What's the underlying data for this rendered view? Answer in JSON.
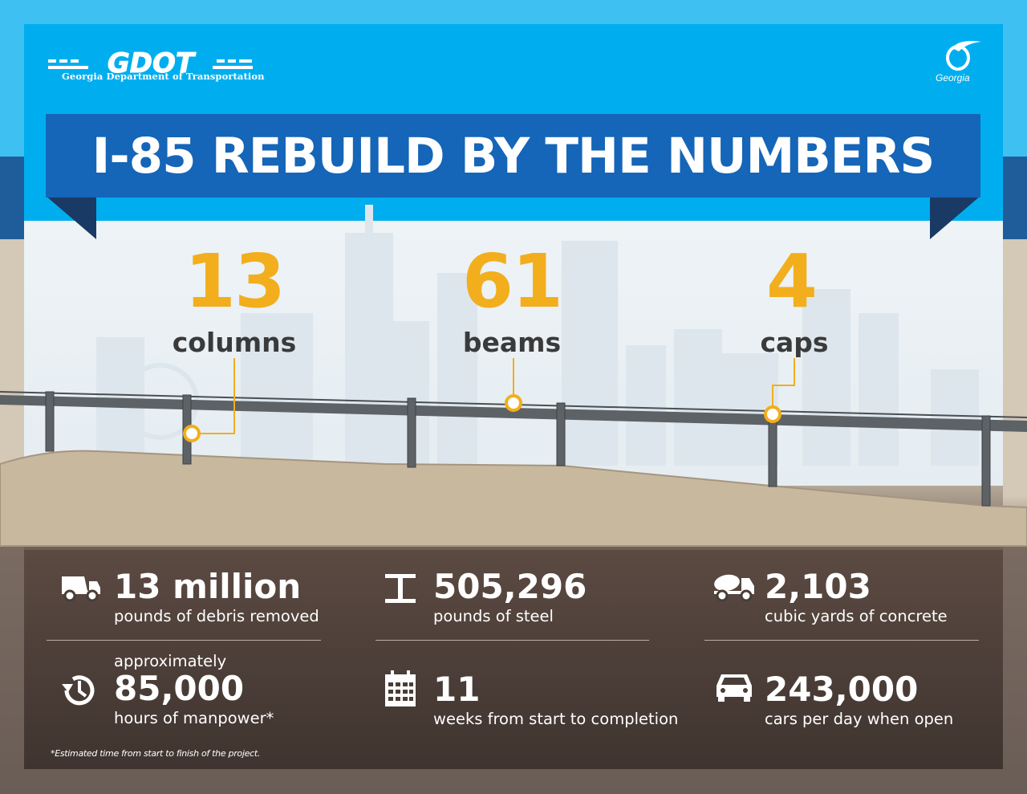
{
  "header": {
    "logo_letters": "GDOT",
    "logo_subtitle": "Georgia Department of Transportation",
    "state_logo_text": "Georgia",
    "title": "I-85 REBUILD BY THE NUMBERS"
  },
  "top_stats": [
    {
      "number": "13",
      "label": "columns"
    },
    {
      "number": "61",
      "label": "beams"
    },
    {
      "number": "4",
      "label": "caps"
    }
  ],
  "bottom_stats": [
    {
      "icon": "dump-truck-icon",
      "prefix": "",
      "number": "13 million",
      "desc": "pounds of debris removed"
    },
    {
      "icon": "steel-beam-icon",
      "prefix": "",
      "number": "505,296",
      "desc": "pounds of steel"
    },
    {
      "icon": "concrete-mixer-icon",
      "prefix": "",
      "number": "2,103",
      "desc": "cubic yards of concrete"
    },
    {
      "icon": "clock-icon",
      "prefix": "approximately",
      "number": "85,000",
      "desc": "hours of manpower*"
    },
    {
      "icon": "calendar-icon",
      "prefix": "",
      "number": "11",
      "desc": "weeks from start to completion"
    },
    {
      "icon": "car-icon",
      "prefix": "",
      "number": "243,000",
      "desc": "cars per day when open"
    }
  ],
  "footnote": "*Estimated time from start to finish of the project.",
  "colors": {
    "sky": "#00aeef",
    "banner": "#1565b8",
    "ribbon": "#1a3a66",
    "accent": "#f2ae1c",
    "ground": "#c8b89e",
    "dark_ground": "#4a3d37"
  }
}
